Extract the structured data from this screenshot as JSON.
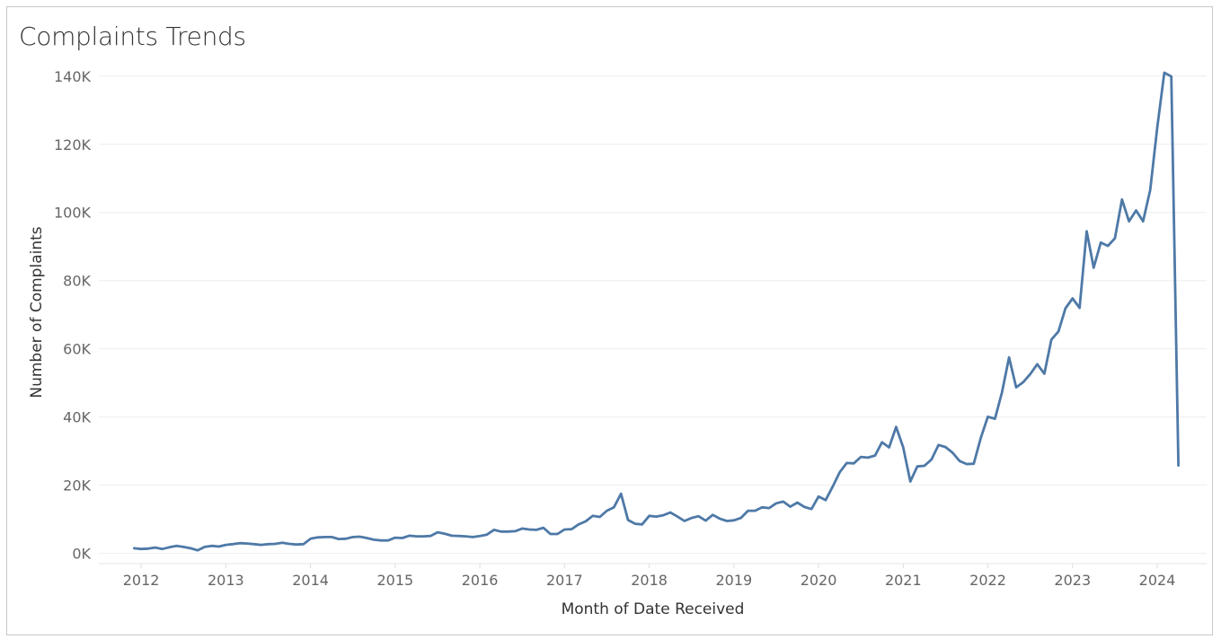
{
  "chart_data": {
    "type": "line",
    "title": "Complaints Trends",
    "xlabel": "Month of Date Received",
    "ylabel": "Number of Complaints",
    "y_ticks": [
      {
        "value": 0,
        "label": "0K"
      },
      {
        "value": 20000,
        "label": "20K"
      },
      {
        "value": 40000,
        "label": "40K"
      },
      {
        "value": 60000,
        "label": "60K"
      },
      {
        "value": 80000,
        "label": "80K"
      },
      {
        "value": 100000,
        "label": "100K"
      },
      {
        "value": 120000,
        "label": "120K"
      },
      {
        "value": 140000,
        "label": "140K"
      }
    ],
    "x_ticks": [
      "2012",
      "2013",
      "2014",
      "2015",
      "2016",
      "2017",
      "2018",
      "2019",
      "2020",
      "2021",
      "2022",
      "2023",
      "2024"
    ],
    "ylim": [
      -3000,
      146000
    ],
    "xlim": [
      "2011-07",
      "2024-08"
    ],
    "grid": true,
    "line_color": "#4e79a7",
    "series": [
      {
        "points": [
          [
            "2011-12",
            1500
          ],
          [
            "2012-01",
            1300
          ],
          [
            "2012-02",
            1400
          ],
          [
            "2012-03",
            1700
          ],
          [
            "2012-04",
            1300
          ],
          [
            "2012-05",
            1800
          ],
          [
            "2012-06",
            2200
          ],
          [
            "2012-07",
            1900
          ],
          [
            "2012-08",
            1500
          ],
          [
            "2012-09",
            900
          ],
          [
            "2012-10",
            1900
          ],
          [
            "2012-11",
            2200
          ],
          [
            "2012-12",
            2000
          ],
          [
            "2013-01",
            2500
          ],
          [
            "2013-02",
            2700
          ],
          [
            "2013-03",
            3000
          ],
          [
            "2013-04",
            2900
          ],
          [
            "2013-05",
            2700
          ],
          [
            "2013-06",
            2500
          ],
          [
            "2013-07",
            2700
          ],
          [
            "2013-08",
            2800
          ],
          [
            "2013-09",
            3100
          ],
          [
            "2013-10",
            2800
          ],
          [
            "2013-11",
            2600
          ],
          [
            "2013-12",
            2700
          ],
          [
            "2014-01",
            4300
          ],
          [
            "2014-02",
            4700
          ],
          [
            "2014-03",
            4800
          ],
          [
            "2014-04",
            4800
          ],
          [
            "2014-05",
            4200
          ],
          [
            "2014-06",
            4300
          ],
          [
            "2014-07",
            4800
          ],
          [
            "2014-08",
            4900
          ],
          [
            "2014-09",
            4500
          ],
          [
            "2014-10",
            4000
          ],
          [
            "2014-11",
            3800
          ],
          [
            "2014-12",
            3800
          ],
          [
            "2015-01",
            4600
          ],
          [
            "2015-02",
            4500
          ],
          [
            "2015-03",
            5200
          ],
          [
            "2015-04",
            5000
          ],
          [
            "2015-05",
            5000
          ],
          [
            "2015-06",
            5100
          ],
          [
            "2015-07",
            6200
          ],
          [
            "2015-08",
            5800
          ],
          [
            "2015-09",
            5200
          ],
          [
            "2015-10",
            5100
          ],
          [
            "2015-11",
            5000
          ],
          [
            "2015-12",
            4800
          ],
          [
            "2016-01",
            5100
          ],
          [
            "2016-02",
            5500
          ],
          [
            "2016-03",
            6900
          ],
          [
            "2016-04",
            6400
          ],
          [
            "2016-05",
            6400
          ],
          [
            "2016-06",
            6500
          ],
          [
            "2016-07",
            7300
          ],
          [
            "2016-08",
            7000
          ],
          [
            "2016-09",
            6900
          ],
          [
            "2016-10",
            7500
          ],
          [
            "2016-11",
            5700
          ],
          [
            "2016-12",
            5700
          ],
          [
            "2017-01",
            7000
          ],
          [
            "2017-02",
            7100
          ],
          [
            "2017-03",
            8500
          ],
          [
            "2017-04",
            9400
          ],
          [
            "2017-05",
            11000
          ],
          [
            "2017-06",
            10700
          ],
          [
            "2017-07",
            12500
          ],
          [
            "2017-08",
            13500
          ],
          [
            "2017-09",
            17500
          ],
          [
            "2017-10",
            9800
          ],
          [
            "2017-11",
            8700
          ],
          [
            "2017-12",
            8500
          ],
          [
            "2018-01",
            11000
          ],
          [
            "2018-02",
            10800
          ],
          [
            "2018-03",
            11200
          ],
          [
            "2018-04",
            12000
          ],
          [
            "2018-05",
            10800
          ],
          [
            "2018-06",
            9500
          ],
          [
            "2018-07",
            10400
          ],
          [
            "2018-08",
            10900
          ],
          [
            "2018-09",
            9600
          ],
          [
            "2018-10",
            11300
          ],
          [
            "2018-11",
            10200
          ],
          [
            "2018-12",
            9500
          ],
          [
            "2019-01",
            9700
          ],
          [
            "2019-02",
            10400
          ],
          [
            "2019-03",
            12500
          ],
          [
            "2019-04",
            12500
          ],
          [
            "2019-05",
            13500
          ],
          [
            "2019-06",
            13300
          ],
          [
            "2019-07",
            14700
          ],
          [
            "2019-08",
            15200
          ],
          [
            "2019-09",
            13700
          ],
          [
            "2019-10",
            14900
          ],
          [
            "2019-11",
            13600
          ],
          [
            "2019-12",
            13000
          ],
          [
            "2020-01",
            16700
          ],
          [
            "2020-02",
            15600
          ],
          [
            "2020-03",
            19600
          ],
          [
            "2020-04",
            23800
          ],
          [
            "2020-05",
            26500
          ],
          [
            "2020-06",
            26400
          ],
          [
            "2020-07",
            28300
          ],
          [
            "2020-08",
            28100
          ],
          [
            "2020-09",
            28700
          ],
          [
            "2020-10",
            32600
          ],
          [
            "2020-11",
            31100
          ],
          [
            "2020-12",
            37100
          ],
          [
            "2021-01",
            31100
          ],
          [
            "2021-02",
            21100
          ],
          [
            "2021-03",
            25500
          ],
          [
            "2021-04",
            25700
          ],
          [
            "2021-05",
            27500
          ],
          [
            "2021-06",
            31800
          ],
          [
            "2021-07",
            31200
          ],
          [
            "2021-08",
            29500
          ],
          [
            "2021-09",
            27100
          ],
          [
            "2021-10",
            26200
          ],
          [
            "2021-11",
            26300
          ],
          [
            "2021-12",
            33900
          ],
          [
            "2022-01",
            40100
          ],
          [
            "2022-02",
            39500
          ],
          [
            "2022-03",
            47200
          ],
          [
            "2022-04",
            57500
          ],
          [
            "2022-05",
            48700
          ],
          [
            "2022-06",
            50200
          ],
          [
            "2022-07",
            52600
          ],
          [
            "2022-08",
            55500
          ],
          [
            "2022-09",
            52700
          ],
          [
            "2022-10",
            62700
          ],
          [
            "2022-11",
            65100
          ],
          [
            "2022-12",
            71900
          ],
          [
            "2023-01",
            74800
          ],
          [
            "2023-02",
            72000
          ],
          [
            "2023-03",
            94500
          ],
          [
            "2023-04",
            83800
          ],
          [
            "2023-05",
            91200
          ],
          [
            "2023-06",
            90200
          ],
          [
            "2023-07",
            92400
          ],
          [
            "2023-08",
            103800
          ],
          [
            "2023-09",
            97400
          ],
          [
            "2023-10",
            100600
          ],
          [
            "2023-11",
            97400
          ],
          [
            "2023-12",
            106600
          ],
          [
            "2024-01",
            124800
          ],
          [
            "2024-02",
            141000
          ],
          [
            "2024-03",
            139900
          ],
          [
            "2024-04",
            25800
          ]
        ]
      }
    ]
  }
}
